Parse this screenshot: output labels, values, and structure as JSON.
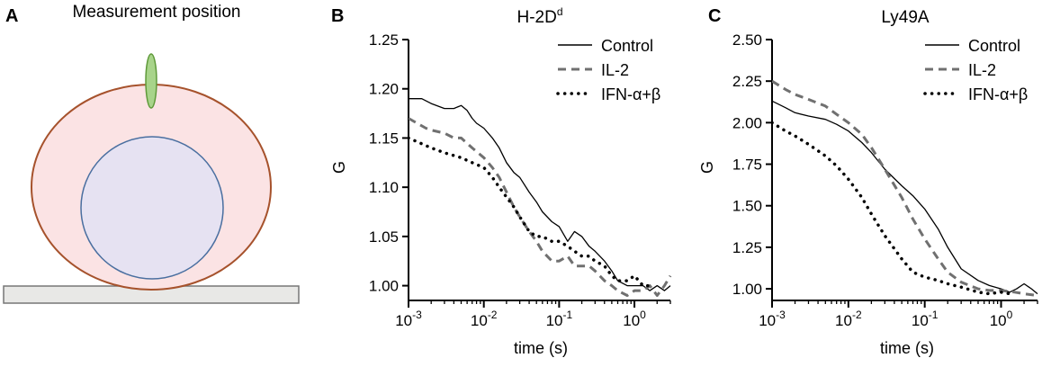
{
  "panel_a": {
    "letter": "A",
    "title": "Measurement position",
    "colors": {
      "cell_fill": "#fbe3e4",
      "cell_border": "#a6522c",
      "nucleus_fill": "#e6e2f2",
      "nucleus_border": "#4a6fa0",
      "probe_fill": "#a8d48a",
      "probe_border": "#5f9a3a",
      "surface_fill": "#e8e8e6",
      "surface_border": "#777777"
    }
  },
  "chart_data": [
    {
      "panel": "B",
      "type": "line",
      "title": "H-2D",
      "title_sup": "d",
      "xlabel": "time (s)",
      "ylabel": "G",
      "xscale": "log",
      "xlim": [
        0.001,
        3
      ],
      "ylim": [
        0.985,
        1.25
      ],
      "x_ticks": [
        {
          "base": "10",
          "exp": "-3",
          "value": 0.001
        },
        {
          "base": "10",
          "exp": "-2",
          "value": 0.01
        },
        {
          "base": "10",
          "exp": "-1",
          "value": 0.1
        },
        {
          "base": "10",
          "exp": "0",
          "value": 1
        }
      ],
      "y_ticks": [
        "1.00",
        "1.05",
        "1.10",
        "1.15",
        "1.20",
        "1.25"
      ],
      "legend_position": "top-right",
      "series": [
        {
          "name": "Control",
          "style": "solid",
          "color": "#000000",
          "x": [
            0.001,
            0.0015,
            0.002,
            0.003,
            0.004,
            0.005,
            0.006,
            0.007,
            0.008,
            0.01,
            0.013,
            0.016,
            0.02,
            0.025,
            0.03,
            0.04,
            0.05,
            0.06,
            0.08,
            0.1,
            0.13,
            0.16,
            0.2,
            0.25,
            0.3,
            0.4,
            0.5,
            0.6,
            0.8,
            1,
            1.3,
            1.6,
            2,
            2.5,
            3
          ],
          "y": [
            1.19,
            1.19,
            1.185,
            1.18,
            1.18,
            1.183,
            1.178,
            1.17,
            1.165,
            1.16,
            1.15,
            1.14,
            1.125,
            1.115,
            1.11,
            1.095,
            1.085,
            1.075,
            1.065,
            1.06,
            1.045,
            1.055,
            1.05,
            1.04,
            1.035,
            1.025,
            1.015,
            1.005,
            1.0,
            1.0,
            1.0,
            0.995,
            1.0,
            0.995,
            1.0
          ]
        },
        {
          "name": "IL-2",
          "style": "dashed",
          "color": "#707070",
          "x": [
            0.001,
            0.0013,
            0.0017,
            0.002,
            0.003,
            0.004,
            0.005,
            0.007,
            0.01,
            0.013,
            0.016,
            0.02,
            0.025,
            0.03,
            0.04,
            0.05,
            0.06,
            0.08,
            0.1,
            0.13,
            0.16,
            0.2,
            0.25,
            0.3,
            0.4,
            0.5,
            0.6,
            0.8,
            1,
            1.3,
            1.6,
            2,
            2.5,
            3
          ],
          "y": [
            1.17,
            1.165,
            1.16,
            1.158,
            1.155,
            1.15,
            1.15,
            1.14,
            1.13,
            1.12,
            1.11,
            1.095,
            1.08,
            1.07,
            1.055,
            1.045,
            1.035,
            1.025,
            1.025,
            1.03,
            1.02,
            1.02,
            1.02,
            1.015,
            1.005,
            1.0,
            0.995,
            0.99,
            0.995,
            0.995,
            1.0,
            0.99,
            1.0,
            1.01
          ]
        },
        {
          "name": "IFN-α+β",
          "style": "dotted",
          "color": "#000000",
          "x": [
            0.001,
            0.002,
            0.003,
            0.005,
            0.007,
            0.01,
            0.013,
            0.016,
            0.02,
            0.025,
            0.03,
            0.04,
            0.05,
            0.06,
            0.08,
            0.1,
            0.13,
            0.16,
            0.2,
            0.25,
            0.3,
            0.4,
            0.5,
            0.6,
            0.8,
            1,
            1.3,
            1.6
          ],
          "y": [
            1.15,
            1.14,
            1.135,
            1.13,
            1.125,
            1.12,
            1.11,
            1.1,
            1.09,
            1.08,
            1.07,
            1.055,
            1.05,
            1.05,
            1.045,
            1.045,
            1.04,
            1.035,
            1.03,
            1.03,
            1.025,
            1.02,
            1.01,
            1.005,
            1.005,
            1.01,
            1.0,
            1.0
          ]
        }
      ]
    },
    {
      "panel": "C",
      "type": "line",
      "title": "Ly49A",
      "title_sup": "",
      "xlabel": "time (s)",
      "ylabel": "G",
      "xscale": "log",
      "xlim": [
        0.001,
        3
      ],
      "ylim": [
        0.93,
        2.5
      ],
      "x_ticks": [
        {
          "base": "10",
          "exp": "-3",
          "value": 0.001
        },
        {
          "base": "10",
          "exp": "-2",
          "value": 0.01
        },
        {
          "base": "10",
          "exp": "-1",
          "value": 0.1
        },
        {
          "base": "10",
          "exp": "0",
          "value": 1
        }
      ],
      "y_ticks": [
        "1.00",
        "1.25",
        "1.50",
        "1.75",
        "2.00",
        "2.25",
        "2.50"
      ],
      "legend_position": "top-right",
      "series": [
        {
          "name": "Control",
          "style": "solid",
          "color": "#000000",
          "x": [
            0.001,
            0.0015,
            0.002,
            0.003,
            0.005,
            0.007,
            0.01,
            0.015,
            0.02,
            0.03,
            0.05,
            0.07,
            0.1,
            0.15,
            0.2,
            0.3,
            0.5,
            0.7,
            1,
            1.3,
            1.6,
            2,
            2.5,
            3
          ],
          "y": [
            2.13,
            2.09,
            2.06,
            2.04,
            2.02,
            1.99,
            1.95,
            1.88,
            1.82,
            1.72,
            1.62,
            1.56,
            1.48,
            1.36,
            1.25,
            1.12,
            1.05,
            1.02,
            1.0,
            0.98,
            1.0,
            1.03,
            1.0,
            0.97
          ]
        },
        {
          "name": "IL-2",
          "style": "dashed",
          "color": "#707070",
          "x": [
            0.001,
            0.0015,
            0.002,
            0.003,
            0.005,
            0.007,
            0.01,
            0.015,
            0.02,
            0.03,
            0.05,
            0.07,
            0.1,
            0.15,
            0.2,
            0.3,
            0.5,
            0.7,
            1,
            1.5,
            2,
            3
          ],
          "y": [
            2.25,
            2.2,
            2.17,
            2.14,
            2.1,
            2.05,
            2.0,
            1.93,
            1.85,
            1.72,
            1.55,
            1.42,
            1.3,
            1.18,
            1.1,
            1.04,
            1.0,
            0.99,
            0.99,
            0.98,
            0.97,
            0.96
          ]
        },
        {
          "name": "IFN-α+β",
          "style": "dotted",
          "color": "#000000",
          "x": [
            0.001,
            0.0015,
            0.002,
            0.003,
            0.005,
            0.007,
            0.01,
            0.015,
            0.02,
            0.03,
            0.05,
            0.07,
            0.1,
            0.15,
            0.2,
            0.3,
            0.5,
            0.7,
            1,
            1.3
          ],
          "y": [
            2.0,
            1.95,
            1.92,
            1.87,
            1.8,
            1.74,
            1.66,
            1.55,
            1.45,
            1.32,
            1.18,
            1.1,
            1.07,
            1.05,
            1.03,
            1.01,
            0.98,
            0.97,
            0.98,
            0.97
          ]
        }
      ]
    }
  ]
}
